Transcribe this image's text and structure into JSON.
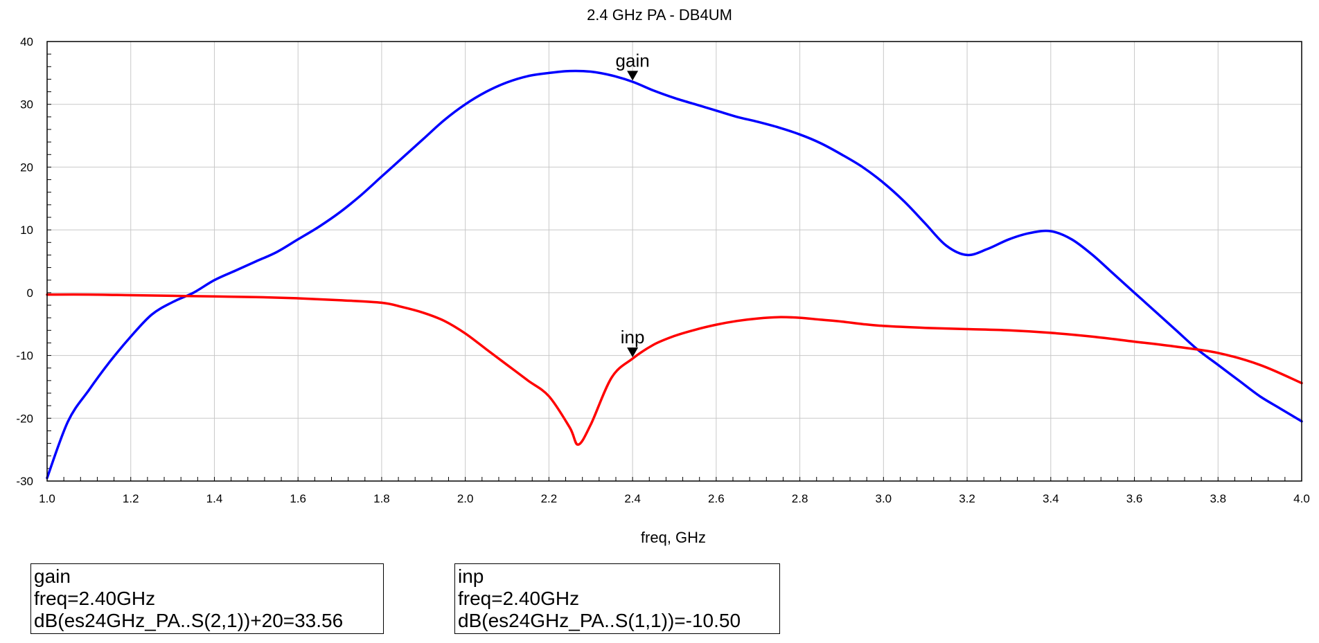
{
  "chart_data": {
    "type": "line",
    "title": "2.4 GHz PA - DB4UM",
    "xlabel": "freq, GHz",
    "ylabel": "",
    "xlim": [
      1.0,
      4.0
    ],
    "ylim": [
      -30,
      40
    ],
    "grid": true,
    "x_ticks": [
      "1.0",
      "1.2",
      "1.4",
      "1.6",
      "1.8",
      "2.0",
      "2.2",
      "2.4",
      "2.6",
      "2.8",
      "3.0",
      "3.2",
      "3.4",
      "3.6",
      "3.8",
      "4.0"
    ],
    "y_ticks": [
      "40",
      "30",
      "20",
      "10",
      "0",
      "-10",
      "-20",
      "-30"
    ],
    "series": [
      {
        "name": "gain",
        "color": "#0000ff",
        "x": [
          1.0,
          1.05,
          1.1,
          1.15,
          1.2,
          1.25,
          1.3,
          1.35,
          1.4,
          1.45,
          1.5,
          1.55,
          1.6,
          1.65,
          1.7,
          1.75,
          1.8,
          1.85,
          1.9,
          1.95,
          2.0,
          2.05,
          2.1,
          2.15,
          2.2,
          2.25,
          2.3,
          2.35,
          2.4,
          2.45,
          2.5,
          2.55,
          2.6,
          2.65,
          2.7,
          2.75,
          2.8,
          2.85,
          2.9,
          2.95,
          3.0,
          3.05,
          3.1,
          3.15,
          3.2,
          3.25,
          3.3,
          3.35,
          3.4,
          3.45,
          3.5,
          3.55,
          3.6,
          3.65,
          3.7,
          3.75,
          3.8,
          3.85,
          3.9,
          3.95,
          4.0
        ],
        "y": [
          -29.5,
          -20.5,
          -15.5,
          -11.0,
          -7.0,
          -3.5,
          -1.5,
          0.0,
          2.0,
          3.5,
          5.0,
          6.5,
          8.5,
          10.5,
          12.8,
          15.5,
          18.5,
          21.5,
          24.5,
          27.5,
          30.0,
          32.0,
          33.5,
          34.5,
          35.0,
          35.3,
          35.2,
          34.6,
          33.6,
          32.2,
          31.0,
          30.0,
          29.0,
          28.0,
          27.2,
          26.3,
          25.2,
          23.8,
          22.0,
          20.0,
          17.5,
          14.5,
          11.0,
          7.5,
          6.0,
          7.0,
          8.5,
          9.5,
          9.8,
          8.5,
          6.0,
          3.0,
          0.0,
          -3.0,
          -6.0,
          -9.0,
          -11.5,
          -14.0,
          -16.5,
          -18.5,
          -20.5
        ]
      },
      {
        "name": "inp",
        "color": "#ff0000",
        "x": [
          1.0,
          1.1,
          1.2,
          1.3,
          1.4,
          1.5,
          1.6,
          1.7,
          1.8,
          1.85,
          1.9,
          1.95,
          2.0,
          2.05,
          2.1,
          2.15,
          2.2,
          2.25,
          2.27,
          2.3,
          2.35,
          2.4,
          2.45,
          2.5,
          2.55,
          2.6,
          2.65,
          2.7,
          2.75,
          2.8,
          2.85,
          2.9,
          2.95,
          3.0,
          3.1,
          3.2,
          3.3,
          3.4,
          3.5,
          3.6,
          3.7,
          3.8,
          3.9,
          4.0
        ],
        "y": [
          -0.3,
          -0.3,
          -0.4,
          -0.5,
          -0.6,
          -0.7,
          -0.9,
          -1.2,
          -1.6,
          -2.3,
          -3.2,
          -4.5,
          -6.5,
          -9.0,
          -11.5,
          -14.0,
          -16.5,
          -21.5,
          -24.2,
          -21.0,
          -13.5,
          -10.5,
          -8.3,
          -6.9,
          -5.9,
          -5.1,
          -4.5,
          -4.1,
          -3.9,
          -4.0,
          -4.3,
          -4.6,
          -5.0,
          -5.3,
          -5.6,
          -5.8,
          -6.0,
          -6.4,
          -7.0,
          -7.8,
          -8.6,
          -9.6,
          -11.5,
          -14.4
        ]
      }
    ],
    "markers": [
      {
        "name": "gain",
        "x": 2.4,
        "y": 33.56
      },
      {
        "name": "inp",
        "x": 2.4,
        "y": -10.5
      }
    ]
  },
  "readouts": [
    {
      "name": "gain",
      "freq": "freq=2.40GHz",
      "expr": "dB(es24GHz_PA..S(2,1))+20=33.56"
    },
    {
      "name": "inp",
      "freq": "freq=2.40GHz",
      "expr": "dB(es24GHz_PA..S(1,1))=-10.50"
    }
  ]
}
